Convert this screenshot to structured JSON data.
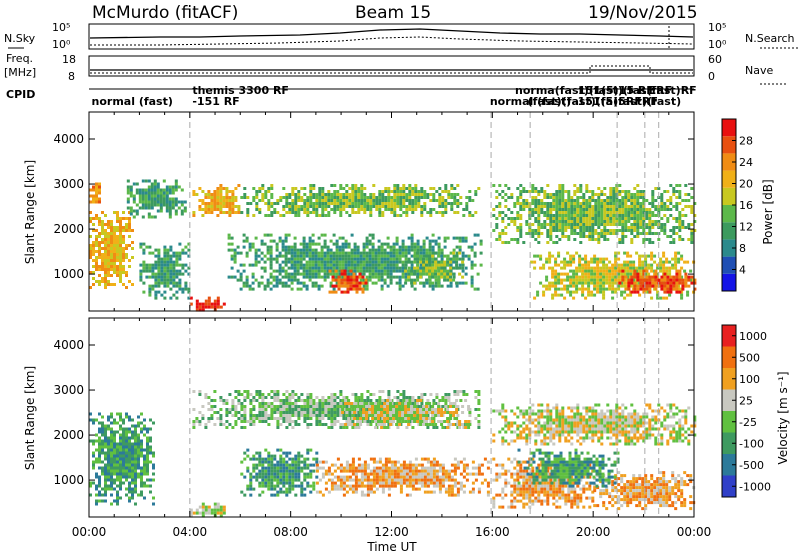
{
  "header": {
    "station": "McMurdo (fitACF)",
    "beam": "Beam 15",
    "date": "19/Nov/2015"
  },
  "noise_panel": {
    "left_label": "N.Sky",
    "right_label": "N.Search",
    "left_ticks": [
      "10^5",
      "10^0"
    ],
    "right_ticks": [
      "10^5",
      "10^0"
    ]
  },
  "freq_panel": {
    "left_label_line1": "Freq.",
    "left_label_line2": "[MHz]",
    "right_label": "Nave",
    "left_ticks": [
      "18",
      "8"
    ],
    "right_ticks": [
      "60",
      "0"
    ]
  },
  "cpid": {
    "label": "CPID",
    "entries": [
      {
        "text": "normal (fast)",
        "hour": 0.1,
        "row": 1
      },
      {
        "text": "themis 3300 RF",
        "hour": 4.1,
        "row": 0
      },
      {
        "text": "-151 RF",
        "hour": 4.1,
        "row": 1
      },
      {
        "text": "normal (fast)",
        "hour": 15.9,
        "row": 1
      },
      {
        "text": "norma(fast)(fast)(fas(fast)RF",
        "hour": 16.9,
        "row": 0
      },
      {
        "text": "(fast)(fast)(fa(fast)(fast)",
        "hour": 17.4,
        "row": 1
      },
      {
        "text": "151(5)15 RF",
        "hour": 19.4,
        "row": 0
      },
      {
        "text": "-151(5)5RFRF",
        "hour": 19.2,
        "row": 1
      },
      {
        "text": "ERF",
        "hour": 22.2,
        "row": 0
      }
    ],
    "boundaries_hours": [
      4.0,
      15.95,
      17.5,
      20.95,
      22.05,
      22.6
    ]
  },
  "x_axis": {
    "label": "Time UT",
    "ticks": [
      "00:00",
      "04:00",
      "08:00",
      "12:00",
      "16:00",
      "20:00",
      "00:00"
    ]
  },
  "chart_data": [
    {
      "type": "heatmap",
      "title": "",
      "xlabel": "",
      "ylabel": "Slant Range [km]",
      "xlim_hours": [
        0,
        24
      ],
      "ylim": [
        180,
        4600
      ],
      "yticks": [
        1000,
        2000,
        3000,
        4000
      ],
      "colorbar": {
        "label": "Power [dB]",
        "ticks": [
          "4",
          "8",
          "12",
          "16",
          "20",
          "24",
          "28"
        ],
        "colors": [
          "#1414e6",
          "#1f4fb4",
          "#2b8a8c",
          "#3c9a5e",
          "#5cb84a",
          "#c8c820",
          "#f0b018",
          "#f08c14",
          "#e85010",
          "#e81010"
        ]
      },
      "echo_regions": [
        {
          "t0": 0.0,
          "t1": 1.7,
          "r0": 700,
          "r1": 2400,
          "level": 6
        },
        {
          "t0": 0.0,
          "t1": 0.4,
          "r0": 2600,
          "r1": 3100,
          "level": 7
        },
        {
          "t0": 1.5,
          "t1": 3.8,
          "r0": 2300,
          "r1": 3100,
          "level": 3
        },
        {
          "t0": 2.0,
          "t1": 4.0,
          "r0": 500,
          "r1": 1700,
          "level": 3
        },
        {
          "t0": 4.0,
          "t1": 5.4,
          "r0": 200,
          "r1": 500,
          "level": 9
        },
        {
          "t0": 4.1,
          "t1": 6.0,
          "r0": 2300,
          "r1": 3000,
          "level": 6
        },
        {
          "t0": 6.0,
          "t1": 15.5,
          "r0": 2300,
          "r1": 3000,
          "level": 4
        },
        {
          "t0": 5.5,
          "t1": 15.5,
          "r0": 700,
          "r1": 1900,
          "level": 3
        },
        {
          "t0": 9.5,
          "t1": 11.0,
          "r0": 600,
          "r1": 1100,
          "level": 8
        },
        {
          "t0": 12.5,
          "t1": 14.8,
          "r0": 800,
          "r1": 1500,
          "level": 4
        },
        {
          "t0": 16.0,
          "t1": 24.0,
          "r0": 1700,
          "r1": 3000,
          "level": 4
        },
        {
          "t0": 17.5,
          "t1": 24.0,
          "r0": 500,
          "r1": 1500,
          "level": 5
        },
        {
          "t0": 21.0,
          "t1": 24.0,
          "r0": 600,
          "r1": 1100,
          "level": 8
        }
      ]
    },
    {
      "type": "heatmap",
      "title": "",
      "xlabel": "Time UT",
      "ylabel": "Slant Range [km]",
      "xlim_hours": [
        0,
        24
      ],
      "ylim": [
        180,
        4600
      ],
      "yticks": [
        1000,
        2000,
        3000,
        4000
      ],
      "colorbar": {
        "label": "Velocity [m s^-1]",
        "ticks": [
          "1000",
          "500",
          "100",
          "25",
          "-25",
          "-100",
          "-500",
          "-1000"
        ],
        "colors": [
          "#3040c8",
          "#2c7a9a",
          "#3e9a60",
          "#60c040",
          "#c8c8c0",
          "#f0a020",
          "#f07010",
          "#e82020"
        ]
      },
      "echo_regions": [
        {
          "t0": 0.0,
          "t1": 2.5,
          "r0": 500,
          "r1": 2500,
          "level": 2
        },
        {
          "t0": 4.0,
          "t1": 5.5,
          "r0": 200,
          "r1": 500,
          "level": 4
        },
        {
          "t0": 4.1,
          "t1": 15.5,
          "r0": 2200,
          "r1": 3000,
          "level": 3
        },
        {
          "t0": 6.0,
          "t1": 9.0,
          "r0": 700,
          "r1": 1700,
          "level": 2
        },
        {
          "t0": 9.0,
          "t1": 15.8,
          "r0": 700,
          "r1": 1500,
          "level": 5
        },
        {
          "t0": 10.0,
          "t1": 15.0,
          "r0": 2200,
          "r1": 2800,
          "level": 4
        },
        {
          "t0": 16.0,
          "t1": 24.0,
          "r0": 1800,
          "r1": 2700,
          "level": 4
        },
        {
          "t0": 16.0,
          "t1": 20.0,
          "r0": 400,
          "r1": 1500,
          "level": 5
        },
        {
          "t0": 20.0,
          "t1": 24.0,
          "r0": 400,
          "r1": 1200,
          "level": 5
        },
        {
          "t0": 17.0,
          "t1": 21.0,
          "r0": 900,
          "r1": 1700,
          "level": 2
        }
      ]
    }
  ]
}
